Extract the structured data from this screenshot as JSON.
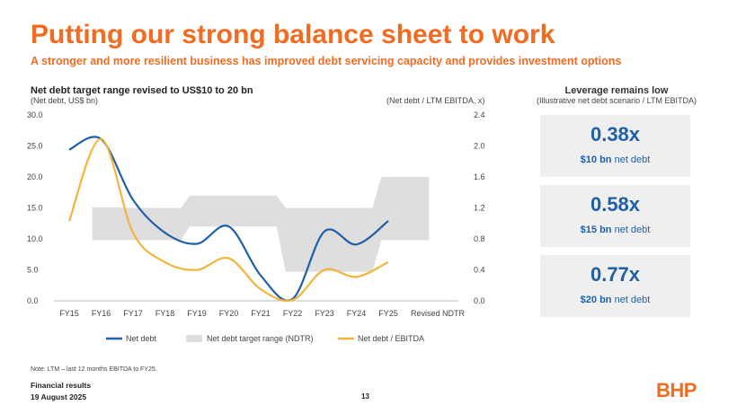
{
  "header": {
    "title": "Putting our strong balance sheet to work",
    "subtitle": "A stronger and more resilient business has improved debt servicing capacity and provides investment options"
  },
  "chart_panel": {
    "title": "Net debt target range revised to US$10 to 20 bn",
    "left_axis_note": "(Net debt, US$ bn)",
    "right_axis_note": "(Net debt / LTM EBITDA, x)"
  },
  "chart_data": {
    "type": "line",
    "categories": [
      "FY15",
      "FY16",
      "FY17",
      "FY18",
      "FY19",
      "FY20",
      "FY21",
      "FY22",
      "FY23",
      "FY24",
      "FY25",
      "Revised NDTR"
    ],
    "y_left": {
      "range": [
        0,
        30
      ],
      "ticks": [
        "0.0",
        "5.0",
        "10.0",
        "15.0",
        "20.0",
        "25.0",
        "30.0"
      ]
    },
    "y_right": {
      "range": [
        0,
        2.4
      ],
      "ticks": [
        "0.0",
        "0.4",
        "0.8",
        "1.2",
        "1.6",
        "2.0",
        "2.4"
      ]
    },
    "series": [
      {
        "name": "Net debt",
        "axis": "left",
        "color": "#1f5fa8",
        "values": [
          24.4,
          26.1,
          16.3,
          11.0,
          9.2,
          12.0,
          4.1,
          0.3,
          11.2,
          9.1,
          12.9,
          null
        ]
      },
      {
        "name": "Net debt / EBITDA",
        "axis": "right",
        "color": "#f6b33c",
        "values": [
          1.03,
          2.09,
          0.88,
          0.5,
          0.4,
          0.55,
          0.15,
          0.01,
          0.4,
          0.31,
          0.5,
          null
        ]
      }
    ],
    "band": {
      "name": "Net debt target range (NDTR)",
      "axis": "left",
      "color": "#dedede",
      "categories": [
        "FY16",
        "FY17",
        "FY18",
        "FY19",
        "FY20",
        "FY21",
        "FY22",
        "FY23",
        "FY24",
        "FY25",
        "Revised NDTR"
      ],
      "lower": [
        9.8,
        9.8,
        9.8,
        12.0,
        12.0,
        12.0,
        4.7,
        4.7,
        4.7,
        9.8,
        9.8
      ],
      "upper": [
        15.1,
        15.0,
        15.0,
        17.0,
        17.0,
        17.0,
        15.0,
        15.0,
        15.0,
        20.0,
        20.0
      ]
    },
    "legend": [
      "Net debt",
      "Net debt target range (NDTR)",
      "Net debt / EBITDA"
    ]
  },
  "leverage_panel": {
    "title": "Leverage remains low",
    "subtitle": "(Illustrative net debt scenario / LTM EBITDA)",
    "cards": [
      {
        "ratio": "0.38x",
        "amount": "$10 bn",
        "suffix": "net debt"
      },
      {
        "ratio": "0.58x",
        "amount": "$15 bn",
        "suffix": "net debt"
      },
      {
        "ratio": "0.77x",
        "amount": "$20 bn",
        "suffix": "net debt"
      }
    ]
  },
  "footer": {
    "note": "Note: LTM – last 12 months EBITDA to FY25.",
    "report": "Financial results",
    "date": "19 August 2025",
    "page": "13",
    "logo": "BHP"
  }
}
